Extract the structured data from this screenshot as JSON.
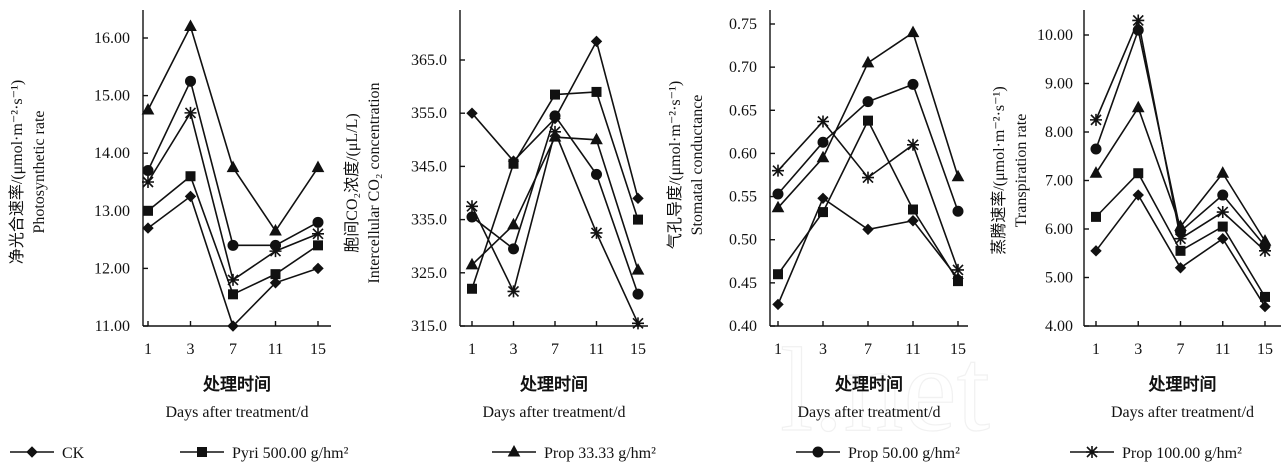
{
  "chart_data": [
    {
      "type": "line",
      "x": [
        1,
        3,
        7,
        11,
        15
      ],
      "xticks": [
        "1",
        "3",
        "7",
        "11",
        "15"
      ],
      "ylim": [
        11.0,
        16.0
      ],
      "yticks": [
        "11.00",
        "12.00",
        "13.00",
        "14.00",
        "15.00",
        "16.00"
      ],
      "ylabel_cn": "净光合速率/(μmol·m⁻²·s⁻¹)",
      "ylabel_en": "Photosynthetic rate",
      "xlabel_cn": "处理时间",
      "xlabel_en": "Days after treatment/d",
      "series": [
        {
          "name": "CK",
          "marker": "diamond",
          "values": [
            12.7,
            13.25,
            11.0,
            11.75,
            12.0
          ]
        },
        {
          "name": "Pyri 500.00 g/hm²",
          "marker": "square",
          "values": [
            13.0,
            13.6,
            11.55,
            11.9,
            12.4
          ]
        },
        {
          "name": "Prop 33.33 g/hm²",
          "marker": "triangle",
          "values": [
            14.75,
            16.2,
            13.75,
            12.65,
            13.75
          ]
        },
        {
          "name": "Prop 50.00 g/hm²",
          "marker": "circle",
          "values": [
            13.7,
            15.25,
            12.4,
            12.4,
            12.8
          ]
        },
        {
          "name": "Prop 100.00 g/hm²",
          "marker": "star",
          "values": [
            13.5,
            14.7,
            11.8,
            12.3,
            12.6
          ]
        }
      ]
    },
    {
      "type": "line",
      "x": [
        1,
        3,
        7,
        11,
        15
      ],
      "xticks": [
        "1",
        "3",
        "7",
        "11",
        "15"
      ],
      "ylim": [
        315.0,
        365.0
      ],
      "yticks": [
        "315.0",
        "325.0",
        "335.0",
        "345.0",
        "355.0",
        "365.0"
      ],
      "ylabel_cn": "胞间CO₂浓度/(μL/L)",
      "ylabel_en": "Intercellular CO₂ concentration",
      "xlabel_cn": "处理时间",
      "xlabel_en": "Days after treatment/d",
      "series": [
        {
          "name": "CK",
          "marker": "diamond",
          "values": [
            355.0,
            346.0,
            354.0,
            368.5,
            339.0
          ]
        },
        {
          "name": "Pyri 500.00 g/hm²",
          "marker": "square",
          "values": [
            322.0,
            345.5,
            358.5,
            359.0,
            335.0
          ]
        },
        {
          "name": "Prop 33.33 g/hm²",
          "marker": "triangle",
          "values": [
            326.5,
            334.0,
            350.5,
            350.0,
            325.5
          ]
        },
        {
          "name": "Prop 50.00 g/hm²",
          "marker": "circle",
          "values": [
            335.5,
            329.5,
            354.5,
            343.5,
            321.0
          ]
        },
        {
          "name": "Prop 100.00 g/hm²",
          "marker": "star",
          "values": [
            337.5,
            321.5,
            351.5,
            332.5,
            315.5
          ]
        }
      ]
    },
    {
      "type": "line",
      "x": [
        1,
        3,
        7,
        11,
        15
      ],
      "xticks": [
        "1",
        "3",
        "7",
        "11",
        "15"
      ],
      "ylim": [
        0.4,
        0.75
      ],
      "yticks": [
        "0.40",
        "0.45",
        "0.50",
        "0.55",
        "0.60",
        "0.65",
        "0.70",
        "0.75"
      ],
      "ylabel_cn": "气孔导度/(μmol·m⁻²·s⁻¹)",
      "ylabel_en": "Stomatal conductance",
      "xlabel_cn": "处理时间",
      "xlabel_en": "Days after treatment/d",
      "series": [
        {
          "name": "CK",
          "marker": "diamond",
          "values": [
            0.425,
            0.548,
            0.512,
            0.522,
            0.455
          ]
        },
        {
          "name": "Pyri 500.00 g/hm²",
          "marker": "square",
          "values": [
            0.46,
            0.532,
            0.638,
            0.535,
            0.452
          ]
        },
        {
          "name": "Prop 33.33 g/hm²",
          "marker": "triangle",
          "values": [
            0.537,
            0.595,
            0.705,
            0.74,
            0.573
          ]
        },
        {
          "name": "Prop 50.00 g/hm²",
          "marker": "circle",
          "values": [
            0.553,
            0.613,
            0.66,
            0.68,
            0.533
          ]
        },
        {
          "name": "Prop 100.00 g/hm²",
          "marker": "star",
          "values": [
            0.58,
            0.637,
            0.572,
            0.61,
            0.465
          ]
        }
      ]
    },
    {
      "type": "line",
      "x": [
        1,
        3,
        7,
        11,
        15
      ],
      "xticks": [
        "1",
        "3",
        "7",
        "11",
        "15"
      ],
      "ylim": [
        4.0,
        10.0
      ],
      "yticks": [
        "4.00",
        "5.00",
        "6.00",
        "7.00",
        "8.00",
        "9.00",
        "10.00"
      ],
      "ylabel_cn": "蒸腾速率/(μmol·m⁻²·s⁻¹)",
      "ylabel_en": "Transpiration rate",
      "xlabel_cn": "处理时间",
      "xlabel_en": "Days after treatment/d",
      "series": [
        {
          "name": "CK",
          "marker": "diamond",
          "values": [
            5.55,
            6.7,
            5.2,
            5.8,
            4.4
          ]
        },
        {
          "name": "Pyri 500.00 g/hm²",
          "marker": "square",
          "values": [
            6.25,
            7.15,
            5.55,
            6.05,
            4.6
          ]
        },
        {
          "name": "Prop 33.33 g/hm²",
          "marker": "triangle",
          "values": [
            7.15,
            8.5,
            6.05,
            7.15,
            5.75
          ]
        },
        {
          "name": "Prop 50.00 g/hm²",
          "marker": "circle",
          "values": [
            7.65,
            10.1,
            5.95,
            6.7,
            5.65
          ]
        },
        {
          "name": "Prop 100.00 g/hm²",
          "marker": "star",
          "values": [
            8.25,
            10.3,
            5.8,
            6.35,
            5.55
          ]
        }
      ]
    }
  ],
  "legend": [
    {
      "label": "CK",
      "marker": "diamond"
    },
    {
      "label": "Pyri 500.00 g/hm²",
      "marker": "square"
    },
    {
      "label": "Prop 33.33 g/hm²",
      "marker": "triangle"
    },
    {
      "label": "Prop 50.00 g/hm²",
      "marker": "circle"
    },
    {
      "label": "Prop 100.00 g/hm²",
      "marker": "star"
    }
  ],
  "watermark": "l.net",
  "colors": {
    "ink": "#111111",
    "background": "#ffffff",
    "watermark": "#e6e6e6"
  }
}
